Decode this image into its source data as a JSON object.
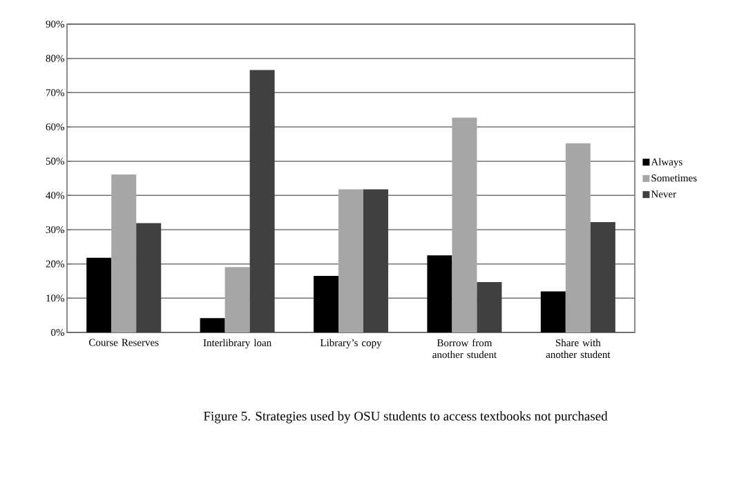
{
  "chart_data": {
    "type": "bar",
    "categories": [
      "Course Reserves",
      "Interlibrary loan",
      "Library’s copy",
      "Borrow from another student",
      "Share with another student"
    ],
    "series": [
      {
        "name": "Always",
        "color": "#000000",
        "values": [
          21.8,
          4.2,
          16.5,
          22.5,
          12.0
        ]
      },
      {
        "name": "Sometimes",
        "color": "#a6a6a6",
        "values": [
          46.1,
          19.1,
          41.8,
          62.7,
          55.2
        ]
      },
      {
        "name": "Never",
        "color": "#404040",
        "values": [
          31.9,
          76.6,
          41.8,
          14.7,
          32.2
        ]
      }
    ],
    "ylim": [
      0,
      90
    ],
    "yticks": [
      {
        "value": 0,
        "label": "0%"
      },
      {
        "value": 10,
        "label": "10%"
      },
      {
        "value": 20,
        "label": "20%"
      },
      {
        "value": 30,
        "label": "30%"
      },
      {
        "value": 40,
        "label": "40%"
      },
      {
        "value": 50,
        "label": "50%"
      },
      {
        "value": 60,
        "label": "60%"
      },
      {
        "value": 70,
        "label": "70%"
      },
      {
        "value": 80,
        "label": "80%"
      },
      {
        "value": 90,
        "label": "90%"
      }
    ],
    "grid": "y",
    "legend": "right",
    "annotations": [
      "Figure 5. Strategies used by OSU students to access textbooks not purchased"
    ]
  }
}
